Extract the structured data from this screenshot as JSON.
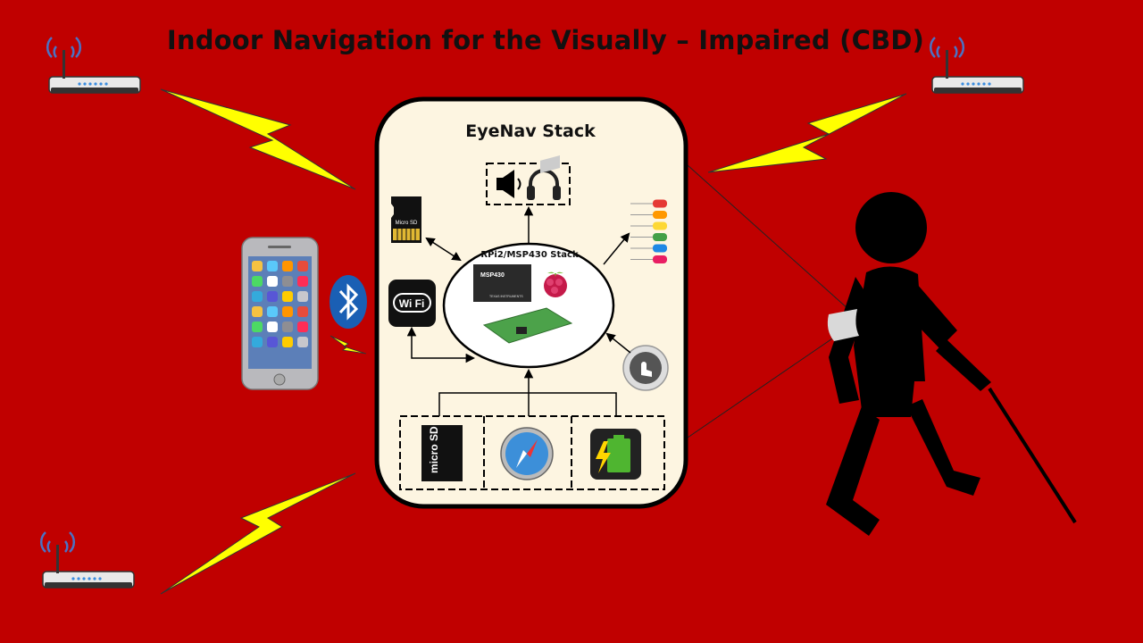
{
  "title": "Indoor Navigation for the Visually – Impaired (CBD)",
  "stack": {
    "title": "EyeNav Stack",
    "core_title": "RPi2/MSP430 Stack",
    "sd_card_label": "Micro SD",
    "microsd_label": "micro SD",
    "wifi_label": "Wi Fi",
    "msp430_label": "MSP430",
    "ti_label": "TEXAS INSTRUMENTS"
  },
  "colors": {
    "background": "#c00000",
    "stack_fill": "#fdf5e1",
    "lightning": "#ffff00",
    "router_signal": "#4a72c4",
    "bluetooth": "#1a5fb4",
    "figure": "#000000"
  },
  "icons": {
    "routers": "wifi-router-icon",
    "phone": "smartphone-icon",
    "bluetooth": "bluetooth-icon",
    "speaker": "speaker-icon",
    "headphones": "headphones-icon",
    "sd_card": "sd-card-icon",
    "wifi": "wifi-icon",
    "leds": "led-icon",
    "touch": "touch-sensor-icon",
    "microsd": "microsd-icon",
    "compass": "compass-icon",
    "battery": "battery-icon",
    "person": "blind-person-icon"
  }
}
